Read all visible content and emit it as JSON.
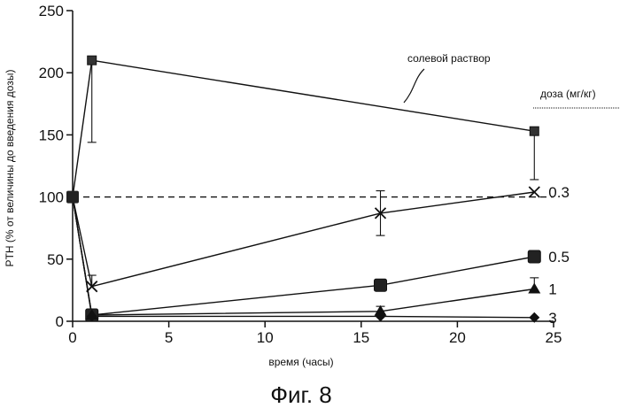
{
  "chart_data": {
    "type": "line",
    "title": "",
    "caption": "Фиг. 8",
    "xlabel": "время (часы)",
    "ylabel": "PTH (% от величины до введения дозы)",
    "xlim": [
      0,
      25
    ],
    "ylim": [
      0,
      250
    ],
    "xticks": [
      0,
      5,
      10,
      15,
      20,
      25
    ],
    "yticks": [
      0,
      50,
      100,
      150,
      200,
      250
    ],
    "legend_title": "доза (мг/кг)",
    "baseline": {
      "y": 100,
      "style": "dashed"
    },
    "series": [
      {
        "name": "солевой раствор",
        "marker": "square",
        "points": [
          {
            "x": 0,
            "y": 100
          },
          {
            "x": 1,
            "y": 210,
            "err_low": 144
          },
          {
            "x": 24,
            "y": 153,
            "err_low": 114
          }
        ]
      },
      {
        "name": "0.3",
        "marker": "cross",
        "points": [
          {
            "x": 0,
            "y": 100
          },
          {
            "x": 1,
            "y": 28,
            "err_high": 37
          },
          {
            "x": 16,
            "y": 87,
            "err_high": 105,
            "err_low": 69
          },
          {
            "x": 24,
            "y": 104
          }
        ]
      },
      {
        "name": "0.5",
        "marker": "filled-square",
        "points": [
          {
            "x": 0,
            "y": 100
          },
          {
            "x": 1,
            "y": 5
          },
          {
            "x": 16,
            "y": 29
          },
          {
            "x": 24,
            "y": 52
          }
        ]
      },
      {
        "name": "1",
        "marker": "triangle",
        "points": [
          {
            "x": 0,
            "y": 100
          },
          {
            "x": 1,
            "y": 5
          },
          {
            "x": 16,
            "y": 8,
            "err_high": 12
          },
          {
            "x": 24,
            "y": 26,
            "err_high": 35
          }
        ]
      },
      {
        "name": "3",
        "marker": "diamond",
        "points": [
          {
            "x": 0,
            "y": 100
          },
          {
            "x": 1,
            "y": 4
          },
          {
            "x": 16,
            "y": 4
          },
          {
            "x": 24,
            "y": 3
          }
        ]
      }
    ]
  }
}
